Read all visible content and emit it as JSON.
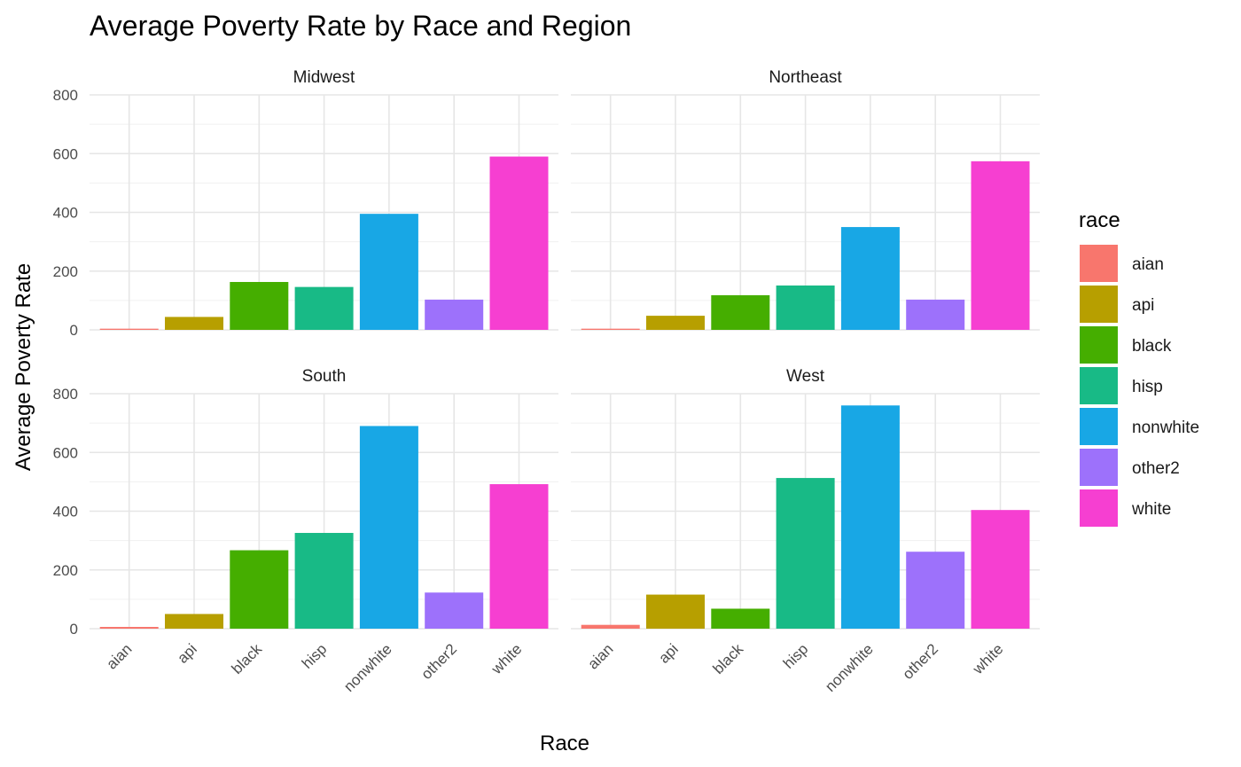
{
  "chart_data": {
    "type": "bar",
    "title": "Average Poverty Rate by Race and Region",
    "xlabel": "Race",
    "ylabel": "Average Poverty Rate",
    "ylim": [
      0,
      800
    ],
    "yticks": [
      0,
      200,
      400,
      600,
      800
    ],
    "grid": true,
    "legend": {
      "title": "race",
      "position": "right"
    },
    "categories": [
      "aian",
      "api",
      "black",
      "hisp",
      "nonwhite",
      "other2",
      "white"
    ],
    "colors": [
      "#F8766D",
      "#B79F00",
      "#45AE00",
      "#18BA86",
      "#18A7E5",
      "#9D71FB",
      "#F63FD1"
    ],
    "facets": [
      {
        "name": "Midwest",
        "values": [
          4,
          44,
          163,
          146,
          395,
          103,
          590
        ]
      },
      {
        "name": "Northeast",
        "values": [
          4,
          48,
          118,
          151,
          350,
          103,
          574
        ]
      },
      {
        "name": "South",
        "values": [
          6,
          50,
          267,
          326,
          690,
          123,
          492
        ]
      },
      {
        "name": "West",
        "values": [
          13,
          116,
          68,
          513,
          760,
          262,
          404
        ]
      }
    ]
  }
}
